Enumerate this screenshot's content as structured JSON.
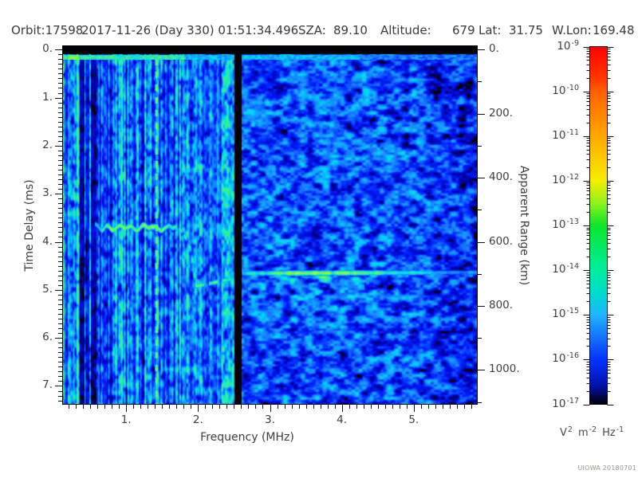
{
  "header": {
    "orbit": "Orbit:17598",
    "datetime": "2017-11-26 (Day 330) 01:51:34.496",
    "sza_label": "SZA:",
    "sza_value": "89.10",
    "altitude_label": "Altitude:",
    "altitude_value": "679",
    "lat_label": "Lat:",
    "lat_value": "31.75",
    "wlon_label": "W.Lon:",
    "wlon_value": "169.48"
  },
  "footer": {
    "credit": "UIOWA 20180701"
  },
  "chart_data": {
    "type": "heatmap",
    "description": "Radar sounder ionogram: received spectral density vs frequency and time delay",
    "x_axis": {
      "label": "Frequency (MHz)",
      "range": [
        0.11,
        5.89
      ],
      "major_ticks": [
        1,
        2,
        3,
        4,
        5
      ],
      "major_tick_labels": [
        "1.",
        "2.",
        "3.",
        "4.",
        "5."
      ],
      "minor_tick_step": 0.1
    },
    "y_axis_left": {
      "label": "Time Delay (ms)",
      "range": [
        -0.07,
        7.39
      ],
      "direction": "down",
      "major_ticks": [
        0,
        1,
        2,
        3,
        4,
        5,
        6,
        7
      ],
      "major_tick_labels": [
        "0.",
        "1.",
        "2.",
        "3.",
        "4.",
        "5.",
        "6.",
        "7."
      ],
      "minor_tick_step": 0.1
    },
    "y_axis_right": {
      "label": "Apparent Range (km)",
      "km_per_ms": 150,
      "major_ticks": [
        0,
        200,
        400,
        600,
        800,
        1000
      ],
      "major_tick_labels": [
        "0.",
        "200.",
        "400.",
        "600.",
        "800.",
        "1000."
      ],
      "minor_tick_step": 100
    },
    "colorbar": {
      "scale": "log",
      "base": "10",
      "exponents": [
        -9,
        -10,
        -11,
        -12,
        -13,
        -14,
        -15,
        -16,
        -17
      ],
      "top_value": "1e-9",
      "bottom_value": "1e-17",
      "unit_parts": [
        [
          "V",
          "2"
        ],
        [
          "m",
          "-2"
        ],
        [
          "Hz",
          "-1"
        ]
      ],
      "gradient_stops": [
        [
          0.0,
          "#ff0000"
        ],
        [
          0.09,
          "#ff3800"
        ],
        [
          0.125,
          "#ff6000"
        ],
        [
          0.25,
          "#ffa800"
        ],
        [
          0.375,
          "#f6ee00"
        ],
        [
          0.44,
          "#8cf21c"
        ],
        [
          0.5,
          "#0ce62a"
        ],
        [
          0.625,
          "#00eda0"
        ],
        [
          0.7,
          "#00d7d4"
        ],
        [
          0.75,
          "#1fb4ff"
        ],
        [
          0.875,
          "#0433ff"
        ],
        [
          0.95,
          "#0011a8"
        ],
        [
          0.985,
          "#000430"
        ],
        [
          1.0,
          "#01010a"
        ]
      ]
    },
    "features": {
      "top_calibration_band": {
        "delay_ms_range": [
          -0.07,
          0.1
        ],
        "color": "black"
      },
      "first_echo_row": {
        "delay_ms": 0.15,
        "extent_mhz": [
          0.11,
          5.89
        ],
        "color": "cyan, dimmer toward high frequency"
      },
      "plasma_harmonic_line": {
        "freq_mhz": 1.42,
        "style": "dashed vertical cyan line, full height"
      },
      "interference_gap": {
        "freq_mhz_range": [
          2.51,
          2.6
        ],
        "style": "black vertical band, full height"
      },
      "ionosphere_trace": {
        "plateau": {
          "freq_mhz": [
            0.57,
            1.66
          ],
          "delay_ms": 3.69,
          "color": "green"
        },
        "cusp": {
          "freq_mhz": [
            1.66,
            1.96
          ],
          "delay_ms": [
            3.69,
            5.12
          ]
        },
        "mid_dashes": {
          "freq_mhz": [
            1.96,
            2.51
          ],
          "delay_ms": [
            4.92,
            4.75
          ]
        },
        "main_echo": {
          "freq_mhz": [
            2.62,
            5.89
          ],
          "delay_ms": 4.65,
          "apparent_range_km": 698,
          "brightest_freq_mhz": [
            3.1,
            4.1
          ]
        },
        "diffuse_scatter_below": {
          "freq_mhz": [
            2.7,
            4.3
          ],
          "delay_ms": [
            4.7,
            5.7
          ]
        }
      },
      "noise": {
        "left_region": {
          "freq_mhz_max": 2.51,
          "texture": "bright blue-cyan vertical striations"
        },
        "right_region": {
          "texture": "smooth dark-blue blobs on black, darkest at high frequency"
        },
        "dark_columns_freq_mhz": [
          0.36,
          0.58
        ],
        "bright_column_freq_mhz": 0.32
      }
    }
  }
}
